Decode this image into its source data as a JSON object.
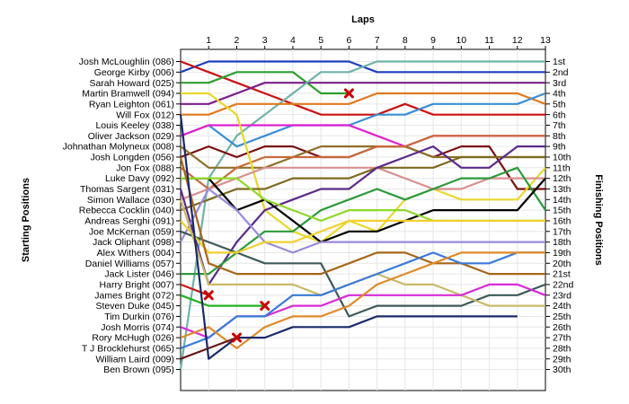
{
  "chart_data": {
    "type": "line",
    "title": "",
    "xlabel": "Laps",
    "ylabel_left": "Starting Positions",
    "ylabel_right": "Finishing Positions",
    "x": [
      0,
      1,
      2,
      3,
      4,
      5,
      6,
      7,
      8,
      9,
      10,
      11,
      12,
      13
    ],
    "x_ticks": [
      "1",
      "2",
      "3",
      "4",
      "5",
      "6",
      "7",
      "8",
      "9",
      "10",
      "11",
      "12",
      "13"
    ],
    "ylim": [
      1,
      30
    ],
    "y_inverted": true,
    "grid": true,
    "starting_grid": [
      "Josh McLoughlin (086)",
      "George Kirby (006)",
      "Sarah Howard (025)",
      "Martin Bramwell (094)",
      "Ryan Leighton (061)",
      "Will Fox (012)",
      "Louis Keeley (038)",
      "Oliver Jackson (029)",
      "Johnathan Molyneux (008)",
      "Josh Longden (056)",
      "Jon Fox (088)",
      "Luke Davy (092)",
      "Thomas Sargent (031)",
      "Simon Wallace (030)",
      "Rebecca Cocklin (040)",
      "Andreas Serghi (091)",
      "Joe McKernan (059)",
      "Jack Oliphant (098)",
      "Alex Withers (004)",
      "Daniel Williams (057)",
      "Jack Lister (046)",
      "Harry Bright (007)",
      "James Bright (072)",
      "Steven Duke (045)",
      "Tim Durkin (076)",
      "Josh Morris (074)",
      "Rory McHugh (026)",
      "T J Brocklehurst (065)",
      "William Laird (009)",
      "Ben Brown (095)"
    ],
    "finishing_positions": [
      "1st",
      "2nd",
      "3rd",
      "4th",
      "5th",
      "6th",
      "7th",
      "8th",
      "9th",
      "10th",
      "11th",
      "12th",
      "13th",
      "14th",
      "15th",
      "16th",
      "17th",
      "18th",
      "19th",
      "20th",
      "21st",
      "22nd",
      "23rd",
      "24th",
      "25th",
      "26th",
      "27th",
      "28th",
      "29th",
      "30th"
    ],
    "series": [
      {
        "color": "#1f3fbf",
        "positions": [
          2,
          1,
          1,
          1,
          1,
          1,
          1,
          2,
          2,
          2,
          2,
          2,
          2,
          2
        ]
      },
      {
        "color": "#cc1111",
        "positions": [
          1,
          2,
          3,
          4,
          5,
          6,
          6,
          6,
          5,
          6,
          6,
          6,
          6,
          6
        ]
      },
      {
        "color": "#2e9e2e",
        "positions": [
          3,
          3,
          2,
          2,
          2,
          4,
          4,
          null,
          null,
          null,
          null,
          null,
          null,
          null
        ],
        "dnf_at": 6
      },
      {
        "color": "#7a1f8a",
        "positions": [
          5,
          5,
          4,
          3,
          3,
          3,
          3,
          3,
          3,
          3,
          3,
          3,
          3,
          3
        ]
      },
      {
        "color": "#6fb3a8",
        "positions": [
          30,
          12,
          8,
          6,
          4,
          2,
          2,
          1,
          1,
          1,
          1,
          1,
          1,
          1
        ]
      },
      {
        "color": "#e07a1f",
        "positions": [
          6,
          6,
          5,
          5,
          5,
          5,
          5,
          4,
          4,
          4,
          4,
          4,
          4,
          5
        ]
      },
      {
        "color": "#3a8fd6",
        "positions": [
          8,
          7,
          9,
          8,
          7,
          7,
          7,
          6,
          6,
          5,
          5,
          5,
          5,
          4
        ]
      },
      {
        "color": "#e020d0",
        "positions": [
          8,
          7,
          7,
          7,
          7,
          7,
          7,
          8,
          9,
          8,
          8,
          8,
          8,
          8
        ]
      },
      {
        "color": "#7a1010",
        "positions": [
          10,
          9,
          10,
          9,
          9,
          10,
          10,
          9,
          9,
          10,
          9,
          9,
          13,
          13
        ]
      },
      {
        "color": "#8f6f2a",
        "positions": [
          9,
          11,
          11,
          11,
          10,
          9,
          9,
          9,
          9,
          10,
          10,
          10,
          10,
          10
        ]
      },
      {
        "color": "#c86a3a",
        "positions": [
          11,
          13,
          11,
          10,
          10,
          10,
          10,
          9,
          9,
          8,
          8,
          8,
          8,
          8
        ]
      },
      {
        "color": "#e8d82a",
        "positions": [
          4,
          4,
          6,
          15,
          17,
          18,
          16,
          17,
          14,
          13,
          14,
          14,
          14,
          11
        ]
      },
      {
        "color": "#d88f8f",
        "positions": [
          14,
          13,
          12,
          11,
          11,
          11,
          11,
          11,
          12,
          13,
          13,
          12,
          12,
          12
        ]
      },
      {
        "color": "#7d6a1f",
        "positions": [
          15,
          14,
          13,
          13,
          12,
          12,
          12,
          11,
          11,
          11,
          10,
          10,
          10,
          10
        ]
      },
      {
        "color": "#5a2a8a",
        "positions": [
          13,
          22,
          18,
          15,
          14,
          13,
          13,
          11,
          10,
          9,
          11,
          11,
          9,
          9
        ]
      },
      {
        "color": "#2a9a3a",
        "positions": [
          21,
          21,
          19,
          17,
          17,
          15,
          14,
          13,
          14,
          13,
          12,
          12,
          11,
          15
        ]
      },
      {
        "color": "#000000",
        "positions": [
          12,
          12,
          15,
          14,
          16,
          18,
          17,
          17,
          16,
          15,
          15,
          15,
          15,
          12
        ]
      },
      {
        "color": "#8fd82a",
        "positions": [
          12,
          12,
          12,
          14,
          15,
          16,
          15,
          15,
          15,
          16,
          16,
          16,
          16,
          16
        ]
      },
      {
        "color": "#9a8ad8",
        "positions": [
          18,
          13,
          15,
          18,
          19,
          18,
          18,
          18,
          18,
          18,
          18,
          18,
          18,
          18
        ]
      },
      {
        "color": "#3f5a5a",
        "positions": [
          17,
          18,
          19,
          20,
          20,
          20,
          25,
          24,
          24,
          24,
          24,
          23,
          23,
          22
        ]
      },
      {
        "color": "#f0d030",
        "positions": [
          16,
          19,
          19,
          18,
          18,
          17,
          16,
          16,
          16,
          16,
          16,
          16,
          16,
          16
        ]
      },
      {
        "color": "#a7661a",
        "positions": [
          10,
          20,
          21,
          21,
          21,
          21,
          20,
          19,
          19,
          20,
          20,
          21,
          21,
          21
        ]
      },
      {
        "color": "#c9b96a",
        "positions": [
          14,
          22,
          22,
          22,
          22,
          23,
          22,
          21,
          22,
          22,
          23,
          24,
          24,
          24
        ]
      },
      {
        "color": "#c71a1a",
        "positions": [
          22,
          23,
          null,
          null,
          null,
          null,
          null,
          null,
          null,
          null,
          null,
          null,
          null,
          null
        ],
        "dnf_at": 1
      },
      {
        "color": "#22b022",
        "positions": [
          23,
          24,
          24,
          24,
          null,
          null,
          null,
          null,
          null,
          null,
          null,
          null,
          null,
          null
        ],
        "dnf_at": 3
      },
      {
        "color": "#d82ad8",
        "positions": [
          26,
          27,
          25,
          25,
          24,
          24,
          23,
          23,
          23,
          23,
          23,
          22,
          22,
          23
        ]
      },
      {
        "color": "#3a7ad8",
        "positions": [
          28,
          27,
          25,
          25,
          23,
          23,
          22,
          21,
          20,
          19,
          20,
          20,
          19,
          19
        ]
      },
      {
        "color": "#e08a2a",
        "positions": [
          27,
          26,
          28,
          26,
          25,
          25,
          24,
          22,
          21,
          20,
          19,
          19,
          19,
          19
        ]
      },
      {
        "color": "#6a1818",
        "positions": [
          29,
          28,
          27,
          null,
          null,
          null,
          null,
          null,
          null,
          null,
          null,
          null,
          null,
          null
        ],
        "dnf_at": 2
      },
      {
        "color": "#1a2a6a",
        "positions": [
          6,
          29,
          27,
          27,
          26,
          26,
          26,
          25,
          25,
          25,
          25,
          25,
          25,
          null
        ]
      }
    ]
  }
}
